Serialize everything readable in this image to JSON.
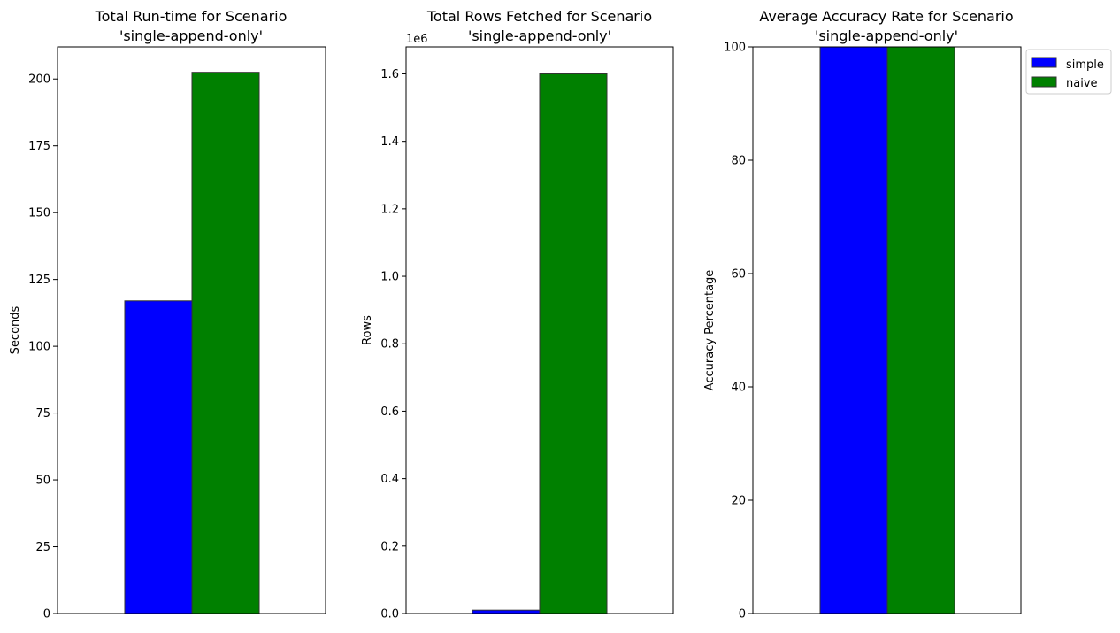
{
  "chart_data": [
    {
      "type": "bar",
      "title_line1": "Total Run-time for Scenario",
      "title_line2": "'single-append-only'",
      "xlabel": "",
      "ylabel": "Seconds",
      "ylim": [
        0,
        212
      ],
      "yticks": [
        "0",
        "25",
        "50",
        "75",
        "100",
        "125",
        "150",
        "175",
        "200"
      ],
      "series": [
        {
          "name": "simple",
          "values": [
            117
          ]
        },
        {
          "name": "naive",
          "values": [
            202.5
          ]
        }
      ]
    },
    {
      "type": "bar",
      "title_line1": "Total Rows Fetched for Scenario",
      "title_line2": "'single-append-only'",
      "xlabel": "",
      "ylabel": "Rows",
      "offset_label": "1e6",
      "ylim": [
        0,
        1.68
      ],
      "yticks": [
        "0.0",
        "0.2",
        "0.4",
        "0.6",
        "0.8",
        "1.0",
        "1.2",
        "1.4",
        "1.6"
      ],
      "series": [
        {
          "name": "simple",
          "values": [
            0.01
          ]
        },
        {
          "name": "naive",
          "values": [
            1.6
          ]
        }
      ]
    },
    {
      "type": "bar",
      "title_line1": "Average Accuracy Rate for Scenario",
      "title_line2": "'single-append-only'",
      "xlabel": "",
      "ylabel": "Accuracy Percentage",
      "ylim": [
        0,
        100
      ],
      "yticks": [
        "0",
        "20",
        "40",
        "60",
        "80",
        "100"
      ],
      "series": [
        {
          "name": "simple",
          "values": [
            100
          ]
        },
        {
          "name": "naive",
          "values": [
            100
          ]
        }
      ],
      "legend": {
        "position": "upper-right-outside",
        "entries": [
          "simple",
          "naive"
        ]
      }
    }
  ],
  "colors": {
    "simple": "#0000ff",
    "naive": "#008000",
    "edge": "#333333"
  }
}
